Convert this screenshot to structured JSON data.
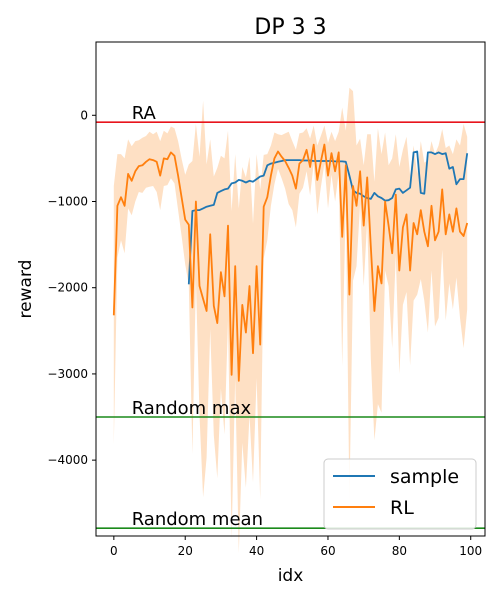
{
  "chart_data": {
    "type": "line",
    "title": "DP 3 3",
    "xlabel": "idx",
    "ylabel": "reward",
    "xlim": [
      -5,
      104
    ],
    "ylim": [
      -4880,
      850
    ],
    "xticks": [
      0,
      20,
      40,
      60,
      80,
      100
    ],
    "yticks": [
      0,
      -1000,
      -2000,
      -3000,
      -4000
    ],
    "ytick_labels": [
      "0",
      "−1000",
      "−2000",
      "−3000",
      "−4000"
    ],
    "grid": false,
    "legend_position": "lower-right",
    "reference_lines": [
      {
        "label": "RA",
        "y": -80,
        "color": "#e8141c"
      },
      {
        "label": "Random max",
        "y": -3500,
        "color": "#1a8a1a"
      },
      {
        "label": "Random mean",
        "y": -4790,
        "color": "#1a8a1a"
      }
    ],
    "series": [
      {
        "name": "sample",
        "color": "#1f77b4",
        "x": [
          21,
          22,
          23,
          24,
          25,
          26,
          27,
          28,
          29,
          30,
          31,
          32,
          33,
          34,
          35,
          36,
          37,
          38,
          39,
          40,
          41,
          42,
          43,
          44,
          45,
          46,
          47,
          48,
          49,
          50,
          51,
          52,
          53,
          54,
          55,
          56,
          57,
          58,
          59,
          60,
          61,
          62,
          63,
          64,
          65,
          66,
          67,
          68,
          69,
          70,
          71,
          72,
          73,
          74,
          75,
          76,
          77,
          78,
          79,
          80,
          81,
          82,
          83,
          84,
          85,
          86,
          87,
          88,
          89,
          90,
          91,
          92,
          93,
          94,
          95,
          96,
          97,
          98,
          99
        ],
        "values": [
          -1960,
          -1110,
          -1100,
          -1100,
          -1080,
          -1060,
          -1050,
          -1040,
          -900,
          -880,
          -860,
          -850,
          -790,
          -780,
          -750,
          -760,
          -780,
          -760,
          -770,
          -740,
          -710,
          -700,
          -580,
          -560,
          -550,
          -540,
          -530,
          -520,
          -520,
          -520,
          -520,
          -520,
          -525,
          -525,
          -525,
          -530,
          -530,
          -530,
          -530,
          -530,
          -530,
          -535,
          -535,
          -535,
          -540,
          -700,
          -870,
          -900,
          -910,
          -940,
          -960,
          -970,
          -900,
          -940,
          -960,
          -990,
          -985,
          -960,
          -860,
          -850,
          -900,
          -870,
          -840,
          -430,
          -420,
          -900,
          -910,
          -430,
          -430,
          -450,
          -430,
          -450,
          -440,
          -620,
          -600,
          -800,
          -740,
          -740,
          -440
        ]
      },
      {
        "name": "RL",
        "color": "#ff7f0e",
        "band_color": "#fdd6b0",
        "x": [
          0,
          1,
          2,
          3,
          4,
          5,
          6,
          7,
          8,
          9,
          10,
          11,
          12,
          13,
          14,
          15,
          16,
          17,
          18,
          19,
          20,
          21,
          22,
          23,
          24,
          25,
          26,
          27,
          28,
          29,
          30,
          31,
          32,
          33,
          34,
          35,
          36,
          37,
          38,
          39,
          40,
          41,
          42,
          43,
          44,
          45,
          46,
          47,
          48,
          49,
          50,
          51,
          52,
          53,
          54,
          55,
          56,
          57,
          58,
          59,
          60,
          61,
          62,
          63,
          64,
          65,
          66,
          67,
          68,
          69,
          70,
          71,
          72,
          73,
          74,
          75,
          76,
          77,
          78,
          79,
          80,
          81,
          82,
          83,
          84,
          85,
          86,
          87,
          88,
          89,
          90,
          91,
          92,
          93,
          94,
          95,
          96,
          97,
          98,
          99
        ],
        "values": [
          -2320,
          -1050,
          -950,
          -1050,
          -680,
          -760,
          -650,
          -590,
          -580,
          -540,
          -510,
          -520,
          -540,
          -700,
          -500,
          -510,
          -430,
          -470,
          -700,
          -960,
          -1210,
          -1270,
          -2230,
          -1000,
          -1980,
          -2130,
          -2270,
          -1380,
          -2210,
          -2410,
          -1820,
          -2100,
          -1280,
          -3010,
          -1750,
          -3080,
          -2200,
          -2520,
          -1980,
          -2760,
          -1750,
          -2660,
          -1060,
          -950,
          -700,
          -500,
          -420,
          -480,
          -530,
          -610,
          -700,
          -850,
          -560,
          -520,
          -400,
          -600,
          -340,
          -750,
          -540,
          -340,
          -700,
          -440,
          -650,
          -430,
          -1410,
          -580,
          -2080,
          -820,
          -1050,
          -650,
          -1280,
          -720,
          -1520,
          -2270,
          -1750,
          -1950,
          -1000,
          -1280,
          -1600,
          -920,
          -1800,
          -1300,
          -1150,
          -1800,
          -1250,
          -1380,
          -1100,
          -1350,
          -1520,
          -1050,
          -1450,
          -1350,
          -860,
          -1380,
          -1150,
          -1350,
          -1080,
          -1350,
          -1400,
          -1250
        ],
        "band_half_width": [
          1500,
          600,
          500,
          550,
          400,
          400,
          350,
          300,
          320,
          300,
          320,
          300,
          350,
          400,
          320,
          300,
          300,
          320,
          400,
          450,
          520,
          700,
          1700,
          900,
          1500,
          2300,
          1700,
          1100,
          1500,
          1800,
          1350,
          1600,
          1100,
          1900,
          1300,
          2000,
          1600,
          1800,
          1500,
          1500,
          1300,
          1800,
          600,
          500,
          350,
          300,
          200,
          250,
          320,
          420,
          400,
          450,
          350,
          320,
          250,
          330,
          220,
          400,
          300,
          220,
          380,
          250,
          350,
          240,
          1500,
          400,
          2400,
          1100,
          700,
          380,
          700,
          500,
          1300,
          1500,
          1600,
          1500,
          800,
          700,
          1100,
          700,
          1200,
          900,
          900,
          1100,
          900,
          700,
          800,
          800,
          1000,
          750,
          1000,
          1000,
          700,
          1000,
          800,
          900,
          800,
          1000,
          1300,
          1000
        ]
      }
    ]
  }
}
